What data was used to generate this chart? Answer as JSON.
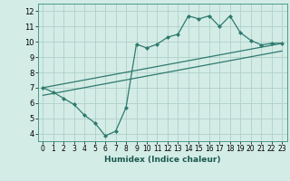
{
  "xlabel": "Humidex (Indice chaleur)",
  "bg_color": "#d4ece6",
  "grid_color": "#afd0ca",
  "line_color": "#2d7a6e",
  "spine_color": "#4a9a8a",
  "xlim": [
    -0.5,
    23.5
  ],
  "ylim": [
    3.5,
    12.5
  ],
  "xticks": [
    0,
    1,
    2,
    3,
    4,
    5,
    6,
    7,
    8,
    9,
    10,
    11,
    12,
    13,
    14,
    15,
    16,
    17,
    18,
    19,
    20,
    21,
    22,
    23
  ],
  "yticks": [
    4,
    5,
    6,
    7,
    8,
    9,
    10,
    11,
    12
  ],
  "line1_x": [
    0,
    1,
    2,
    3,
    4,
    5,
    6,
    7,
    8,
    9,
    10,
    11,
    12,
    13,
    14,
    15,
    16,
    17,
    18,
    19,
    20,
    21,
    22,
    23
  ],
  "line1_y": [
    7.0,
    6.7,
    6.3,
    5.9,
    5.2,
    4.7,
    3.85,
    4.15,
    5.7,
    9.85,
    9.6,
    9.85,
    10.3,
    10.5,
    11.7,
    11.5,
    11.7,
    11.0,
    11.7,
    10.6,
    10.1,
    9.8,
    9.9,
    9.9
  ],
  "line2_x": [
    0,
    23
  ],
  "line2_y": [
    7.0,
    9.9
  ],
  "line3_x": [
    0,
    23
  ],
  "line3_y": [
    6.5,
    9.4
  ],
  "xlabel_fontsize": 6.5,
  "tick_fontsize_x": 5.5,
  "tick_fontsize_y": 6.0
}
